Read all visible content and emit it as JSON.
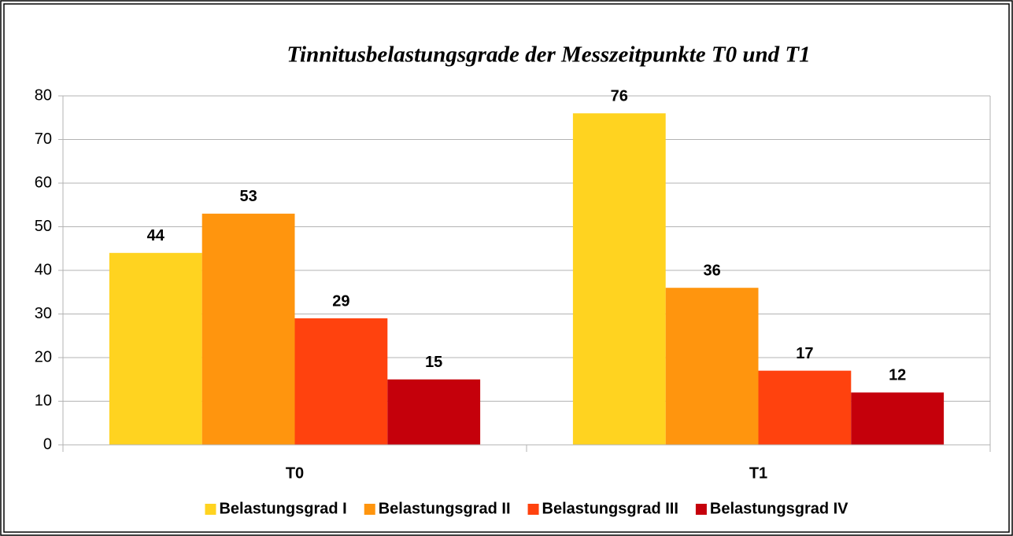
{
  "chart_data": {
    "type": "bar",
    "title": "Tinnitusbelastungsgrade der Messzeitpunkte T0 und T1",
    "categories": [
      "T0",
      "T1"
    ],
    "series": [
      {
        "name": "Belastungsgrad I",
        "color": "#ffd320",
        "values": [
          44,
          76
        ]
      },
      {
        "name": "Belastungsgrad II",
        "color": "#ff950e",
        "values": [
          53,
          36
        ]
      },
      {
        "name": "Belastungsgrad III",
        "color": "#ff420e",
        "values": [
          29,
          17
        ]
      },
      {
        "name": "Belastungsgrad IV",
        "color": "#c5000b",
        "values": [
          15,
          12
        ]
      }
    ],
    "ylim": [
      0,
      80
    ],
    "yticks": [
      0,
      10,
      20,
      30,
      40,
      50,
      60,
      70,
      80
    ],
    "grid": true,
    "legend": "bottom"
  }
}
